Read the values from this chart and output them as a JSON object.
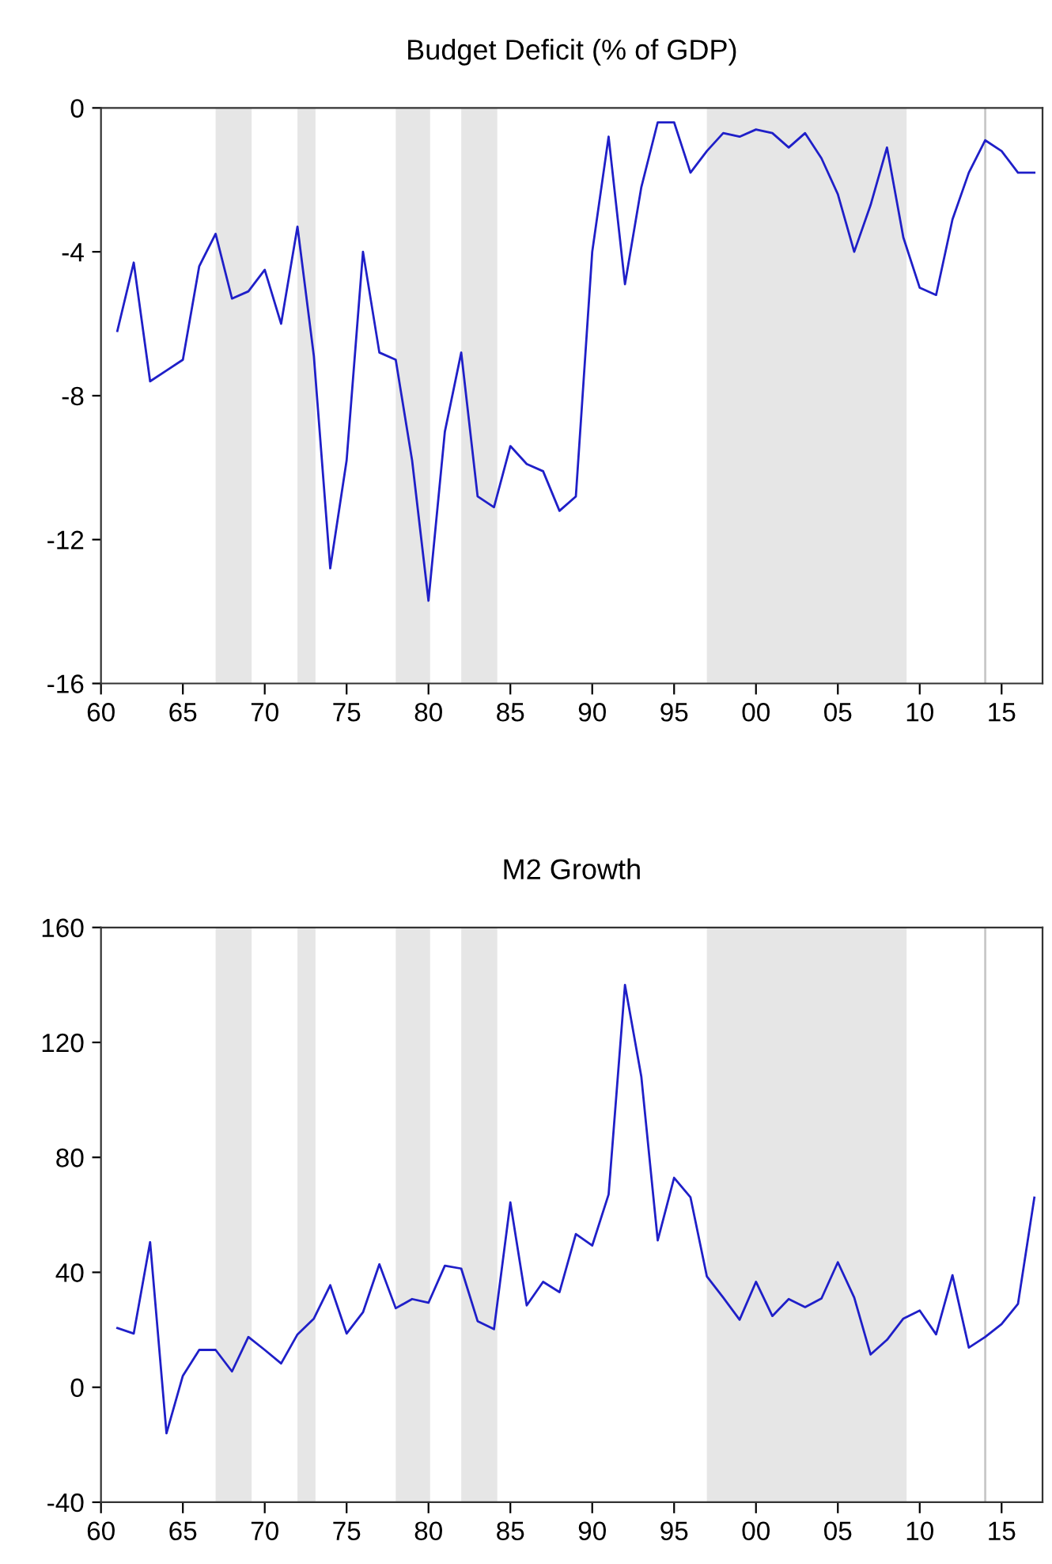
{
  "chart_data": [
    {
      "type": "line",
      "title": "Budget Deficit (% of GDP)",
      "x": [
        1961,
        1962,
        1963,
        1964,
        1965,
        1966,
        1967,
        1968,
        1969,
        1970,
        1971,
        1972,
        1973,
        1974,
        1975,
        1976,
        1977,
        1978,
        1979,
        1980,
        1981,
        1982,
        1983,
        1984,
        1985,
        1986,
        1987,
        1988,
        1989,
        1990,
        1991,
        1992,
        1993,
        1994,
        1995,
        1996,
        1997,
        1998,
        1999,
        2000,
        2001,
        2002,
        2003,
        2004,
        2005,
        2006,
        2007,
        2008,
        2009,
        2010,
        2011,
        2012,
        2013,
        2014,
        2015,
        2016,
        2017
      ],
      "series": [
        {
          "color": "#1f1fc8",
          "values": [
            -6.2,
            -4.3,
            -7.6,
            -7.3,
            -7.0,
            -4.4,
            -3.5,
            -5.3,
            -5.1,
            -4.5,
            -6.0,
            -3.3,
            -6.9,
            -12.8,
            -9.8,
            -4.0,
            -6.8,
            -7.0,
            -9.8,
            -13.7,
            -9.0,
            -6.8,
            -10.8,
            -11.1,
            -9.4,
            -9.9,
            -10.1,
            -11.2,
            -10.8,
            -4.0,
            -0.8,
            -4.9,
            -2.2,
            -0.4,
            -0.4,
            -1.8,
            -1.2,
            -0.7,
            -0.8,
            -0.6,
            -0.7,
            -1.1,
            -0.7,
            -1.4,
            -2.4,
            -4.0,
            -2.7,
            -1.1,
            -3.6,
            -5.0,
            -5.2,
            -3.1,
            -1.8,
            -0.9,
            -1.2,
            -1.8,
            -1.8
          ]
        }
      ],
      "xlim": [
        1960,
        2017.5
      ],
      "ylim": [
        -16,
        0
      ],
      "yticks": [
        -16,
        -12,
        -8,
        -4,
        0
      ],
      "xticks": [
        {
          "value": 1960,
          "label": "60"
        },
        {
          "value": 1965,
          "label": "65"
        },
        {
          "value": 1970,
          "label": "70"
        },
        {
          "value": 1975,
          "label": "75"
        },
        {
          "value": 1980,
          "label": "80"
        },
        {
          "value": 1985,
          "label": "85"
        },
        {
          "value": 1990,
          "label": "90"
        },
        {
          "value": 1995,
          "label": "95"
        },
        {
          "value": 2000,
          "label": "00"
        },
        {
          "value": 2005,
          "label": "05"
        },
        {
          "value": 2010,
          "label": "10"
        },
        {
          "value": 2015,
          "label": "15"
        }
      ],
      "bands": [
        {
          "axis": "x",
          "from": 1967,
          "to": 1969.2,
          "color": "#e6e6e6"
        },
        {
          "axis": "x",
          "from": 1972,
          "to": 1973.1,
          "color": "#e6e6e6"
        },
        {
          "axis": "x",
          "from": 1978,
          "to": 1980.1,
          "color": "#e6e6e6"
        },
        {
          "axis": "x",
          "from": 1982,
          "to": 1984.2,
          "color": "#e6e6e6"
        },
        {
          "axis": "x",
          "from": 1997,
          "to": 2009.2,
          "color": "#e6e6e6"
        }
      ],
      "ref_lines": [
        {
          "axis": "x",
          "value": 2014,
          "color": "#c8c8c8"
        }
      ],
      "grid": false,
      "legend": false
    },
    {
      "type": "line",
      "title": "M2 Growth",
      "x": [
        1961,
        1962,
        1963,
        1964,
        1965,
        1966,
        1967,
        1968,
        1969,
        1970,
        1971,
        1972,
        1973,
        1974,
        1975,
        1976,
        1977,
        1978,
        1979,
        1980,
        1981,
        1982,
        1983,
        1984,
        1985,
        1986,
        1987,
        1988,
        1989,
        1990,
        1991,
        1992,
        1993,
        1994,
        1995,
        1996,
        1997,
        1998,
        1999,
        2000,
        2001,
        2002,
        2003,
        2004,
        2005,
        2006,
        2007,
        2008,
        2009,
        2010,
        2011,
        2012,
        2013,
        2014,
        2015,
        2016,
        2017
      ],
      "series": [
        {
          "color": "#1f1fc8",
          "values": [
            20.6,
            18.7,
            50.5,
            -16,
            4,
            13,
            13,
            5.5,
            17.5,
            13,
            8.3,
            18.4,
            23.9,
            35.5,
            18.7,
            26.1,
            42.8,
            27.5,
            30.7,
            29.4,
            42.3,
            41.3,
            23,
            20.2,
            64.3,
            28.5,
            36.7,
            33.1,
            53.3,
            49.3,
            67.1,
            140,
            108,
            51.1,
            72.9,
            66.1,
            38.6,
            31.2,
            23.5,
            36.7,
            24.8,
            30.7,
            27.9,
            30.9,
            43.5,
            31.2,
            11.4,
            16.5,
            23.9,
            26.7,
            18.4,
            39,
            13.8,
            17.5,
            22,
            29,
            66
          ]
        }
      ],
      "xlim": [
        1960,
        2017.5
      ],
      "ylim": [
        -40,
        160
      ],
      "yticks": [
        -40,
        0,
        40,
        80,
        120,
        160
      ],
      "xticks": [
        {
          "value": 1960,
          "label": "60"
        },
        {
          "value": 1965,
          "label": "65"
        },
        {
          "value": 1970,
          "label": "70"
        },
        {
          "value": 1975,
          "label": "75"
        },
        {
          "value": 1980,
          "label": "80"
        },
        {
          "value": 1985,
          "label": "85"
        },
        {
          "value": 1990,
          "label": "90"
        },
        {
          "value": 1995,
          "label": "95"
        },
        {
          "value": 2000,
          "label": "00"
        },
        {
          "value": 2005,
          "label": "05"
        },
        {
          "value": 2010,
          "label": "10"
        },
        {
          "value": 2015,
          "label": "15"
        }
      ],
      "bands": [
        {
          "axis": "x",
          "from": 1967,
          "to": 1969.2,
          "color": "#e6e6e6"
        },
        {
          "axis": "x",
          "from": 1972,
          "to": 1973.1,
          "color": "#e6e6e6"
        },
        {
          "axis": "x",
          "from": 1978,
          "to": 1980.1,
          "color": "#e6e6e6"
        },
        {
          "axis": "x",
          "from": 1982,
          "to": 1984.2,
          "color": "#e6e6e6"
        },
        {
          "axis": "x",
          "from": 1997,
          "to": 2009.2,
          "color": "#e6e6e6"
        }
      ],
      "ref_lines": [
        {
          "axis": "x",
          "value": 2014,
          "color": "#c8c8c8"
        }
      ],
      "grid": false,
      "legend": false
    }
  ]
}
